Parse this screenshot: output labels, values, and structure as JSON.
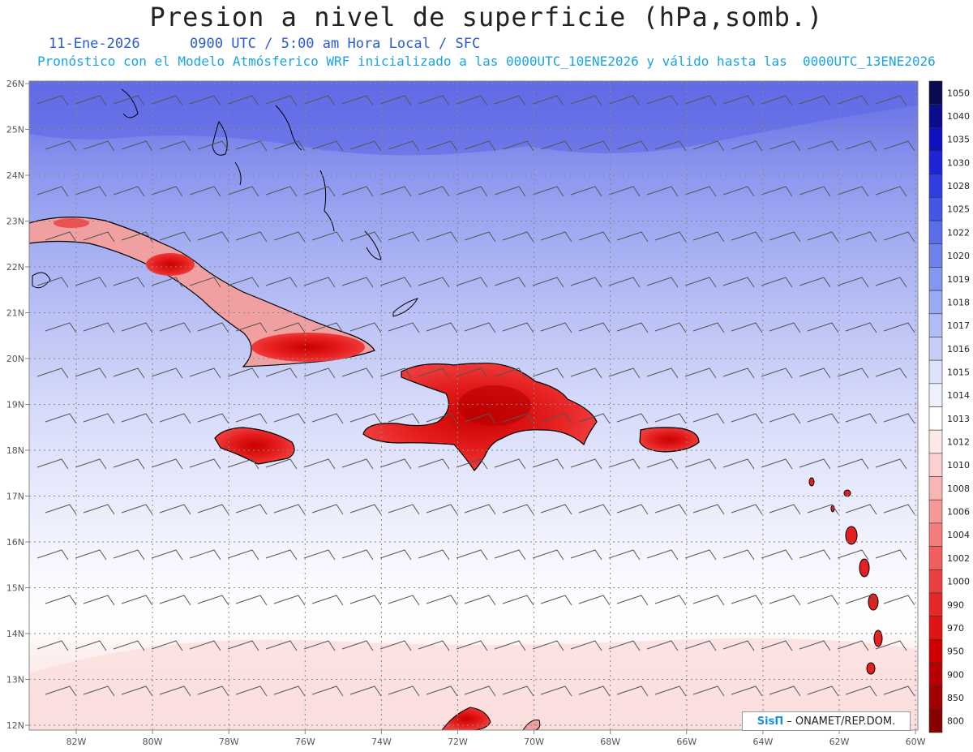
{
  "title": "Presion a nivel de superficie (hPa,somb.)",
  "date": "11-Ene-2026",
  "time_info": "0900 UTC / 5:00 am Hora Local / SFC",
  "forecast_info": "Pronóstico con el Modelo Atmósferico WRF inicializado a las 0000UTC_10ENE2026 y válido hasta las  0000UTC_13ENE2026",
  "lat_labels": [
    "26N",
    "25N",
    "24N",
    "23N",
    "22N",
    "21N",
    "20N",
    "19N",
    "18N",
    "17N",
    "16N",
    "15N",
    "14N",
    "13N",
    "12N"
  ],
  "lon_labels": [
    "82W",
    "80W",
    "78W",
    "76W",
    "74W",
    "72W",
    "70W",
    "68W",
    "66W",
    "64W",
    "62W",
    "60W"
  ],
  "colorbar": {
    "labels": [
      "1050",
      "1040",
      "1035",
      "1030",
      "1028",
      "1025",
      "1022",
      "1020",
      "1019",
      "1018",
      "1017",
      "1016",
      "1015",
      "1014",
      "1013",
      "1012",
      "1010",
      "1008",
      "1006",
      "1004",
      "1002",
      "1000",
      "990",
      "970",
      "950",
      "900",
      "850",
      "800"
    ],
    "colors": [
      "#0a0a50",
      "#0b0b8c",
      "#1010c0",
      "#1e24d8",
      "#2f3ee0",
      "#4356e4",
      "#5a6ee8",
      "#6e82ec",
      "#8496f0",
      "#9aaaf2",
      "#b0bcf5",
      "#c6cef8",
      "#dce2fa",
      "#eef0fd",
      "#ffffff",
      "#fde8e8",
      "#fcd0d0",
      "#f9b4b4",
      "#f79898",
      "#f47c7c",
      "#f05e5e",
      "#ec4040",
      "#e82828",
      "#e01414",
      "#d00000",
      "#b80000",
      "#a00000",
      "#880000"
    ]
  },
  "credit": {
    "logo": "SisΠ",
    "text": "– ONAMET/REP.DOM."
  }
}
